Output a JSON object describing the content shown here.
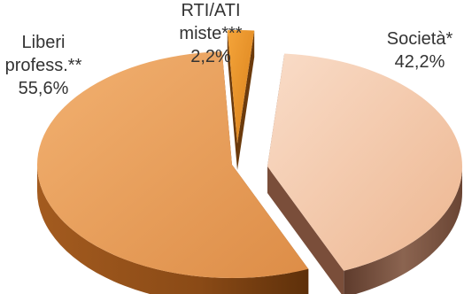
{
  "chart_data": {
    "type": "pie",
    "style": "3d-exploded",
    "title": "",
    "legend": "none",
    "slices": [
      {
        "label_lines": [
          "Società*"
        ],
        "value": 42.2,
        "value_label": "42,2%",
        "color_top": "#F4C6A6",
        "color_side": "#7A4E3A"
      },
      {
        "label_lines": [
          "Liberi",
          "profess.**"
        ],
        "value": 55.6,
        "value_label": "55,6%",
        "color_top": "#E9A05C",
        "color_side": "#7B3F12"
      },
      {
        "label_lines": [
          "RTI/ATI",
          "miste***"
        ],
        "value": 2.2,
        "value_label": "2,2%",
        "color_top": "#E8921E",
        "color_side": "#6B3A0C"
      }
    ]
  }
}
